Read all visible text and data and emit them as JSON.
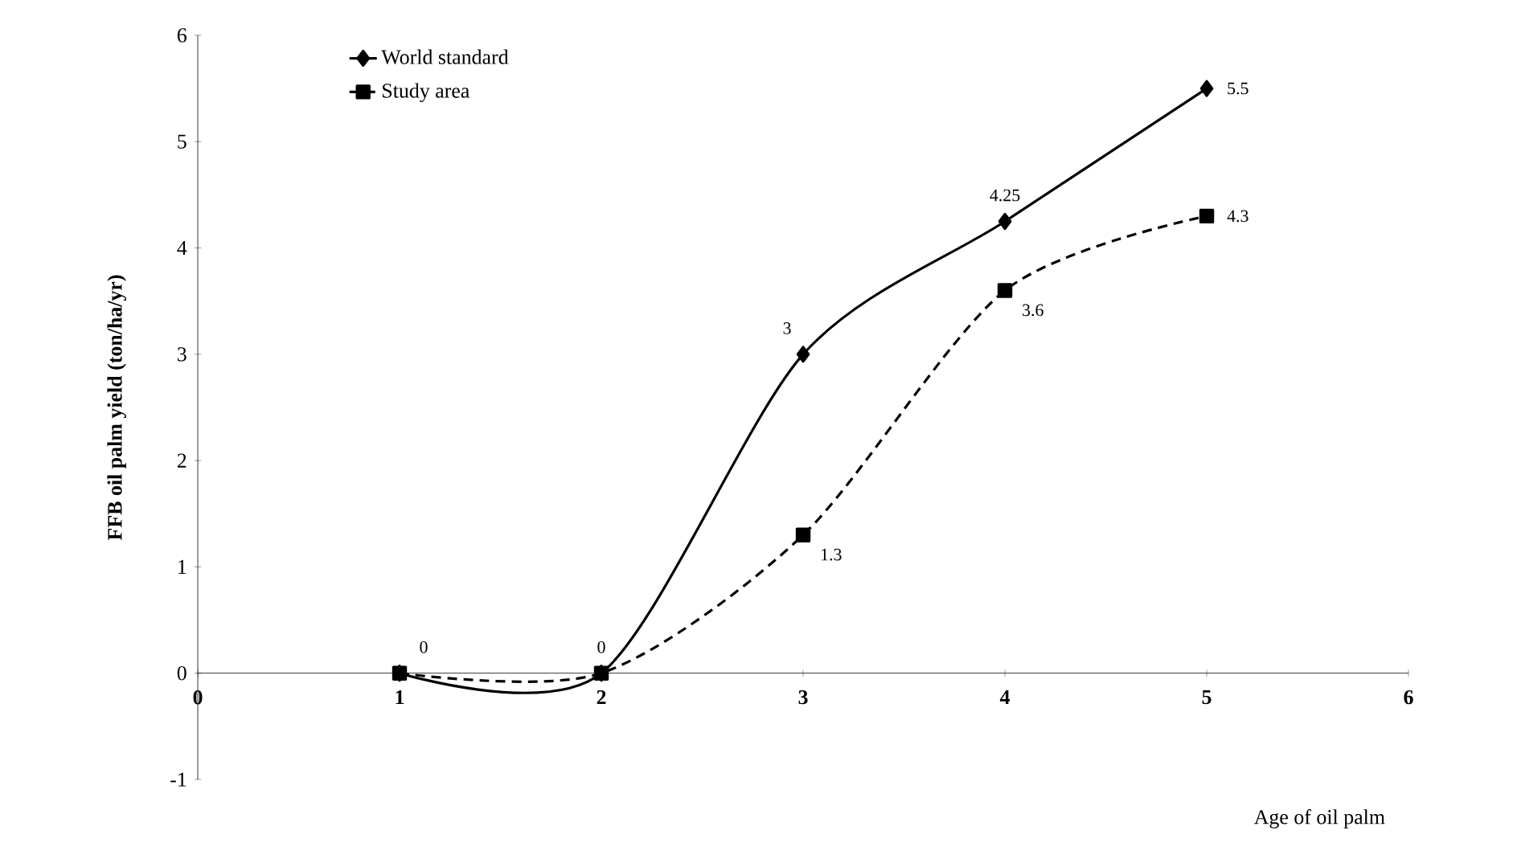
{
  "chart_data": {
    "type": "line",
    "xlabel": "Age of oil palm",
    "ylabel": "FFB oil palm yield (ton/ha/yr)",
    "x": [
      1,
      2,
      3,
      4,
      5
    ],
    "series": [
      {
        "name": "World standard",
        "color": "#000000",
        "marker": "diamond",
        "line_style": "solid",
        "values": [
          0,
          0,
          3,
          4.25,
          5.5
        ],
        "value_labels": [
          "0",
          "0",
          "3",
          "4.25",
          "5.5"
        ]
      },
      {
        "name": "Study area",
        "color": "#000000",
        "marker": "square",
        "line_style": "dashed",
        "values": [
          0,
          0,
          1.3,
          3.6,
          4.3
        ],
        "value_labels": [
          null,
          null,
          "1.3",
          "3.6",
          "4.3"
        ]
      }
    ],
    "xlim": [
      0,
      6
    ],
    "ylim": [
      -1,
      6
    ],
    "xticks": [
      0,
      1,
      2,
      3,
      4,
      5,
      6
    ],
    "yticks": [
      -1,
      0,
      1,
      2,
      3,
      4,
      5,
      6
    ],
    "legend": "top left",
    "grid": false
  }
}
